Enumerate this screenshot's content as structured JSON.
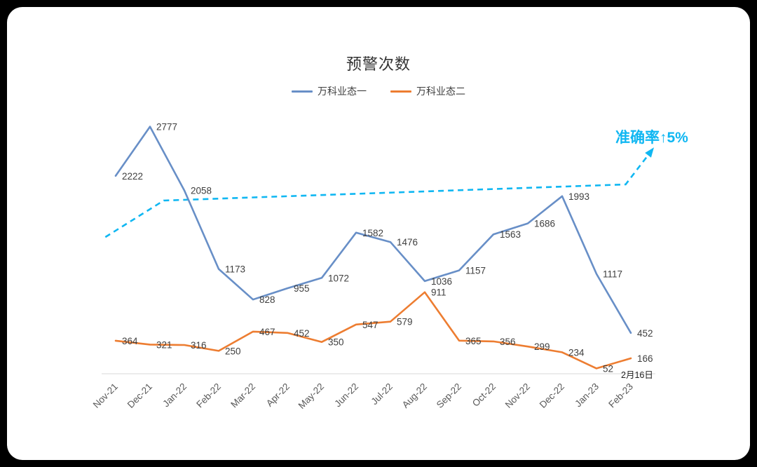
{
  "chart_data": {
    "type": "line",
    "title": "预警次数",
    "categories": [
      "Nov-21",
      "Dec-21",
      "Jan-22",
      "Feb-22",
      "Mar-22",
      "Apr-22",
      "May-22",
      "Jun-22",
      "Jul-22",
      "Aug-22",
      "Sep-22",
      "Oct-22",
      "Nov-22",
      "Dec-22",
      "Jan-23",
      "Feb-23"
    ],
    "series": [
      {
        "name": "万科业态一",
        "color": "#688fc7",
        "values": [
          2222,
          2777,
          2058,
          1173,
          828,
          955,
          1072,
          1582,
          1476,
          1036,
          1157,
          1563,
          1686,
          1993,
          1117,
          452
        ]
      },
      {
        "name": "万科业态二",
        "color": "#ed7d31",
        "values": [
          364,
          321,
          316,
          250,
          467,
          452,
          350,
          547,
          579,
          911,
          365,
          356,
          299,
          234,
          52,
          166
        ]
      }
    ],
    "trend_line": {
      "label": "准确率↑5%",
      "color": "#10b7f2",
      "style": "dashed",
      "points_index_value": [
        [
          -0.3,
          1532
        ],
        [
          1.4,
          1944
        ],
        [
          14.85,
          2126
        ],
        [
          15.55,
          2480
        ]
      ]
    },
    "x_note": "2月16日",
    "ylim": [
      0,
      2900
    ],
    "grid": false,
    "legend_position": "top",
    "label_color": "#3f3f3f",
    "tick_color": "#595959",
    "axis_color": "#d9d9d9"
  }
}
